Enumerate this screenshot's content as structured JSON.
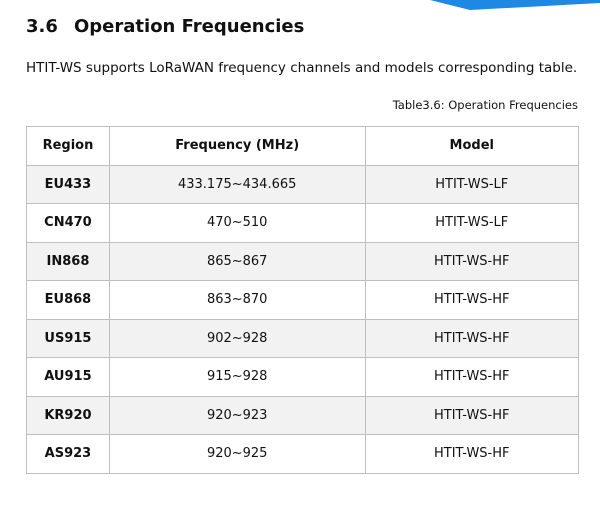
{
  "section": {
    "number": "3.6",
    "title": "Operation Frequencies"
  },
  "intro": "HTIT-WS supports LoRaWAN frequency channels and models corresponding table.",
  "caption": "Table3.6: Operation Frequencies",
  "table": {
    "header": [
      "Region",
      "Frequency (MHz)",
      "Model"
    ],
    "rows": [
      [
        "EU433",
        "433.175~434.665",
        "HTIT-WS-LF"
      ],
      [
        "CN470",
        "470~510",
        "HTIT-WS-LF"
      ],
      [
        "IN868",
        "865~867",
        "HTIT-WS-HF"
      ],
      [
        "EU868",
        "863~870",
        "HTIT-WS-HF"
      ],
      [
        "US915",
        "902~928",
        "HTIT-WS-HF"
      ],
      [
        "AU915",
        "915~928",
        "HTIT-WS-HF"
      ],
      [
        "KR920",
        "920~923",
        "HTIT-WS-HF"
      ],
      [
        "AS923",
        "920~925",
        "HTIT-WS-HF"
      ]
    ]
  }
}
